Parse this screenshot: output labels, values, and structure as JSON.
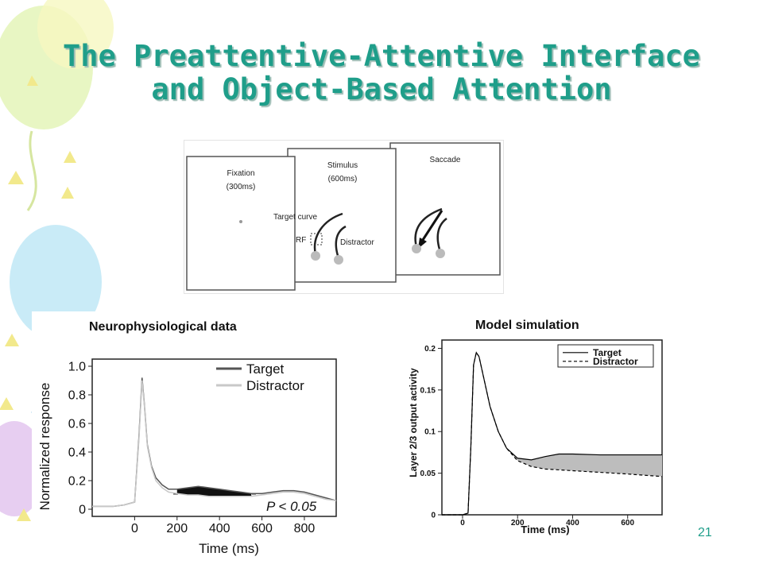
{
  "slide": {
    "title_line1": "The Preattentive-Attentive Interface",
    "title_line2": "and Object-Based Attention",
    "slide_number": "21"
  },
  "task_figure": {
    "fixation_label": "Fixation",
    "fixation_time": "(300ms)",
    "stimulus_label": "Stimulus",
    "stimulus_time": "(600ms)",
    "saccade_label": "Saccade",
    "target_curve_label": "Target curve",
    "rf_label": "RF",
    "distractor_label": "Distractor"
  },
  "chart_data": [
    {
      "type": "line",
      "title": "Neurophysiological data",
      "xlabel": "Time (ms)",
      "ylabel": "Normalized response",
      "x_ticks": [
        "0",
        "200",
        "400",
        "600",
        "800"
      ],
      "y_ticks": [
        "0",
        "0.2",
        "0.4",
        "0.6",
        "0.8",
        "1.0"
      ],
      "xlim": [
        -200,
        950
      ],
      "ylim": [
        -0.05,
        1.05
      ],
      "annotation": "P < 0.05",
      "legend_position": "top-right",
      "series": [
        {
          "name": "Target",
          "color": "#555555",
          "x": [
            -200,
            -100,
            -50,
            0,
            20,
            35,
            45,
            60,
            80,
            100,
            130,
            160,
            200,
            250,
            300,
            350,
            400,
            450,
            500,
            550,
            600,
            650,
            700,
            750,
            800,
            850,
            900,
            950
          ],
          "y": [
            0.02,
            0.02,
            0.03,
            0.05,
            0.5,
            0.92,
            0.75,
            0.45,
            0.3,
            0.22,
            0.17,
            0.14,
            0.14,
            0.15,
            0.16,
            0.15,
            0.14,
            0.13,
            0.12,
            0.11,
            0.11,
            0.12,
            0.13,
            0.13,
            0.12,
            0.1,
            0.08,
            0.06
          ]
        },
        {
          "name": "Distractor",
          "color": "#c8c8c8",
          "x": [
            -200,
            -100,
            -50,
            0,
            20,
            35,
            45,
            60,
            80,
            100,
            130,
            160,
            200,
            250,
            300,
            350,
            400,
            450,
            500,
            550,
            600,
            650,
            700,
            750,
            800,
            850,
            900,
            950
          ],
          "y": [
            0.02,
            0.02,
            0.03,
            0.05,
            0.48,
            0.9,
            0.74,
            0.44,
            0.29,
            0.2,
            0.15,
            0.12,
            0.11,
            0.1,
            0.1,
            0.09,
            0.09,
            0.09,
            0.09,
            0.09,
            0.1,
            0.11,
            0.12,
            0.12,
            0.11,
            0.09,
            0.07,
            0.06
          ]
        }
      ]
    },
    {
      "type": "line",
      "title": "Model simulation",
      "xlabel": "Time (ms)",
      "ylabel": "Layer 2/3 output activity",
      "x_ticks": [
        "0",
        "200",
        "400",
        "600"
      ],
      "y_ticks": [
        "0",
        "0.05",
        "0.1",
        "0.15",
        "0.2"
      ],
      "xlim": [
        -75,
        725
      ],
      "ylim": [
        0,
        0.21
      ],
      "legend_position": "top-right",
      "series": [
        {
          "name": "Target",
          "color": "#000000",
          "x": [
            -75,
            0,
            20,
            30,
            40,
            50,
            60,
            80,
            100,
            130,
            160,
            200,
            250,
            300,
            350,
            400,
            500,
            600,
            725
          ],
          "y": [
            0,
            0,
            0.002,
            0.08,
            0.18,
            0.195,
            0.19,
            0.16,
            0.13,
            0.1,
            0.08,
            0.068,
            0.066,
            0.07,
            0.073,
            0.073,
            0.072,
            0.072,
            0.072
          ]
        },
        {
          "name": "Distractor",
          "color": "#000000",
          "x": [
            -75,
            0,
            20,
            30,
            40,
            50,
            60,
            80,
            100,
            130,
            160,
            200,
            250,
            300,
            350,
            400,
            500,
            600,
            725
          ],
          "y": [
            0,
            0,
            0.002,
            0.08,
            0.18,
            0.195,
            0.19,
            0.16,
            0.13,
            0.1,
            0.08,
            0.065,
            0.058,
            0.055,
            0.054,
            0.053,
            0.051,
            0.049,
            0.046
          ]
        }
      ]
    }
  ]
}
